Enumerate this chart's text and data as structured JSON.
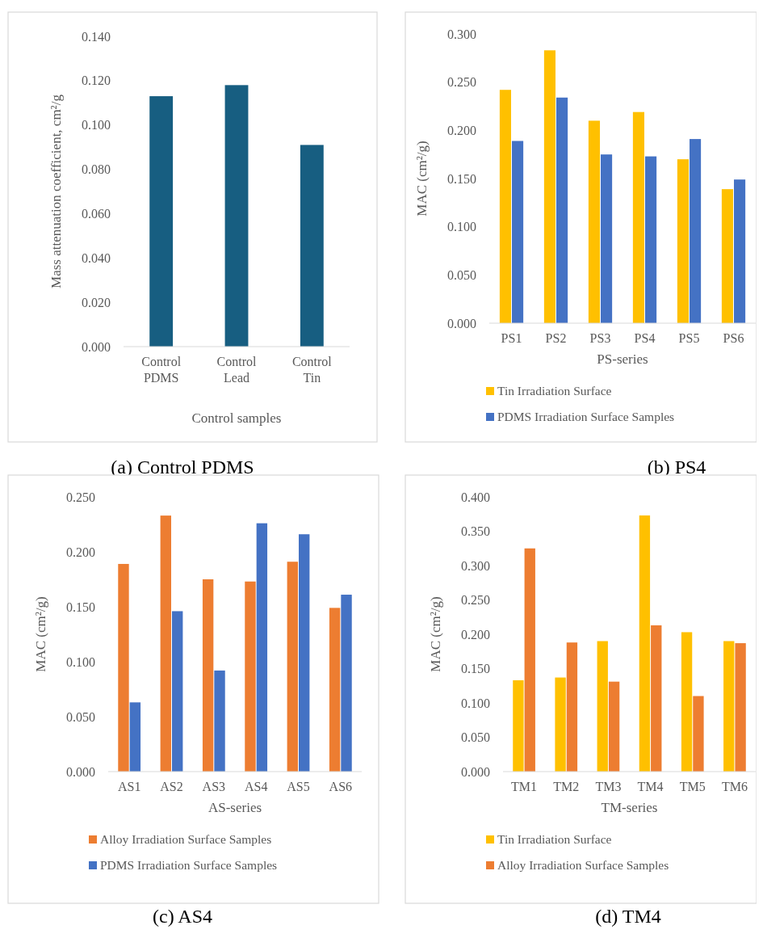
{
  "chart_data": [
    {
      "type": "bar",
      "xlabel": "Control samples",
      "ylabel": "Mass attenuation coefficient, cm²/g",
      "categories": [
        "Control PDMS",
        "Control Lead",
        "Control Tin"
      ],
      "series": [
        {
          "color": "#175e81",
          "values": [
            0.113,
            0.118,
            0.091
          ]
        }
      ],
      "ylim": [
        0,
        0.14
      ],
      "yticks": [
        {
          "value": 0,
          "label": "0.000"
        },
        {
          "value": 0.02,
          "label": "0.020"
        },
        {
          "value": 0.04,
          "label": "0.040"
        },
        {
          "value": 0.06,
          "label": "0.060"
        },
        {
          "value": 0.08,
          "label": "0.080"
        },
        {
          "value": 0.1,
          "label": "0.100"
        },
        {
          "value": 0.12,
          "label": "0.120"
        },
        {
          "value": 0.14,
          "label": "0.140"
        }
      ],
      "grid": false,
      "legend": false,
      "annotations": [
        "(a) Control PDMS"
      ]
    },
    {
      "type": "bar",
      "xlabel": "PS-series",
      "ylabel": "MAC (cm²/g)",
      "categories": [
        "PS1",
        "PS2",
        "PS3",
        "PS4",
        "PS5",
        "PS6"
      ],
      "series": [
        {
          "name": "Tin Irradiation Surface",
          "color": "#ffc000",
          "values": [
            0.242,
            0.283,
            0.21,
            0.219,
            0.17,
            0.139
          ]
        },
        {
          "name": "PDMS Irradiation Surface Samples",
          "color": "#4472c4",
          "values": [
            0.189,
            0.234,
            0.175,
            0.173,
            0.191,
            0.149
          ]
        }
      ],
      "ylim": [
        0,
        0.3
      ],
      "yticks": [
        {
          "value": 0,
          "label": "0.000"
        },
        {
          "value": 0.05,
          "label": "0.050"
        },
        {
          "value": 0.1,
          "label": "0.100"
        },
        {
          "value": 0.15,
          "label": "0.150"
        },
        {
          "value": 0.2,
          "label": "0.200"
        },
        {
          "value": 0.25,
          "label": "0.250"
        },
        {
          "value": 0.3,
          "label": "0.300"
        }
      ],
      "grid": false,
      "legend": "bottom",
      "annotations": [
        "(b) PS4"
      ]
    },
    {
      "type": "bar",
      "xlabel": "AS-series",
      "ylabel": "MAC (cm²/g)",
      "categories": [
        "AS1",
        "AS2",
        "AS3",
        "AS4",
        "AS5",
        "AS6"
      ],
      "series": [
        {
          "name": "Alloy Irradiation Surface Samples",
          "color": "#ed7d31",
          "values": [
            0.189,
            0.233,
            0.175,
            0.173,
            0.191,
            0.149
          ]
        },
        {
          "name": "PDMS Irradiation Surface Samples",
          "color": "#4472c4",
          "values": [
            0.063,
            0.146,
            0.092,
            0.226,
            0.216,
            0.161
          ]
        }
      ],
      "ylim": [
        0,
        0.25
      ],
      "yticks": [
        {
          "value": 0,
          "label": "0.000"
        },
        {
          "value": 0.05,
          "label": "0.050"
        },
        {
          "value": 0.1,
          "label": "0.100"
        },
        {
          "value": 0.15,
          "label": "0.150"
        },
        {
          "value": 0.2,
          "label": "0.200"
        },
        {
          "value": 0.25,
          "label": "0.250"
        }
      ],
      "grid": false,
      "legend": "bottom",
      "annotations": [
        "(c) AS4"
      ]
    },
    {
      "type": "bar",
      "xlabel": "TM-series",
      "ylabel": "MAC (cm²/g)",
      "categories": [
        "TM1",
        "TM2",
        "TM3",
        "TM4",
        "TM5",
        "TM6"
      ],
      "series": [
        {
          "name": "Tin Irradiation Surface",
          "color": "#ffc000",
          "values": [
            0.133,
            0.137,
            0.19,
            0.373,
            0.203,
            0.19
          ]
        },
        {
          "name": "Alloy Irradiation Surface Samples",
          "color": "#ed7d31",
          "values": [
            0.325,
            0.188,
            0.131,
            0.213,
            0.11,
            0.187
          ]
        }
      ],
      "ylim": [
        0,
        0.4
      ],
      "yticks": [
        {
          "value": 0,
          "label": "0.000"
        },
        {
          "value": 0.05,
          "label": "0.050"
        },
        {
          "value": 0.1,
          "label": "0.100"
        },
        {
          "value": 0.15,
          "label": "0.150"
        },
        {
          "value": 0.2,
          "label": "0.200"
        },
        {
          "value": 0.25,
          "label": "0.250"
        },
        {
          "value": 0.3,
          "label": "0.300"
        },
        {
          "value": 0.35,
          "label": "0.350"
        },
        {
          "value": 0.4,
          "label": "0.400"
        }
      ],
      "grid": false,
      "legend": "bottom",
      "annotations": [
        "(d) TM4"
      ]
    }
  ]
}
